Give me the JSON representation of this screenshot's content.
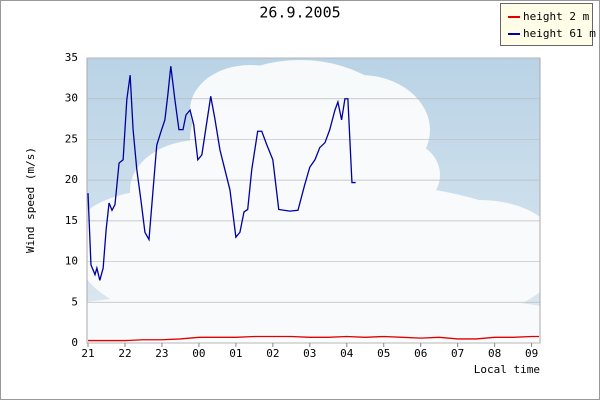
{
  "chart_data": {
    "type": "line",
    "title": "26.9.2005",
    "y_label": "Wind speed (m/s)",
    "x_label": "Local time",
    "xlim": [
      0,
      12.2
    ],
    "ylim": [
      0,
      35
    ],
    "xticks": [
      {
        "value": 0,
        "label": "21"
      },
      {
        "value": 1,
        "label": "22"
      },
      {
        "value": 2,
        "label": "23"
      },
      {
        "value": 3,
        "label": "00"
      },
      {
        "value": 4,
        "label": "01"
      },
      {
        "value": 5,
        "label": "02"
      },
      {
        "value": 6,
        "label": "03"
      },
      {
        "value": 7,
        "label": "04"
      },
      {
        "value": 8,
        "label": "05"
      },
      {
        "value": 9,
        "label": "06"
      },
      {
        "value": 10,
        "label": "07"
      },
      {
        "value": 11,
        "label": "08"
      },
      {
        "value": 12,
        "label": "09"
      }
    ],
    "yticks": [
      0,
      5,
      10,
      15,
      20,
      25,
      30,
      35
    ],
    "grid": true,
    "legend": "upper right",
    "series": [
      {
        "name": "height 2 m",
        "color": "#e00000",
        "x": [
          0,
          0.5,
          1,
          1.5,
          2,
          2.5,
          3,
          3.5,
          4,
          4.5,
          5,
          5.5,
          6,
          6.5,
          7,
          7.5,
          8,
          8.5,
          9,
          9.5,
          10,
          10.5,
          11,
          11.5,
          12,
          12.2
        ],
        "values": [
          0.3,
          0.3,
          0.3,
          0.4,
          0.4,
          0.5,
          0.7,
          0.7,
          0.7,
          0.8,
          0.8,
          0.8,
          0.7,
          0.7,
          0.8,
          0.7,
          0.8,
          0.7,
          0.6,
          0.7,
          0.5,
          0.5,
          0.7,
          0.7,
          0.8,
          0.8
        ]
      },
      {
        "name": "height 61 m",
        "color": "#0000a0",
        "x": [
          0.0,
          0.08,
          0.19,
          0.24,
          0.32,
          0.41,
          0.49,
          0.57,
          0.65,
          0.73,
          0.84,
          0.95,
          1.05,
          1.14,
          1.22,
          1.32,
          1.43,
          1.54,
          1.65,
          1.76,
          1.86,
          1.97,
          2.08,
          2.16,
          2.24,
          2.35,
          2.46,
          2.57,
          2.65,
          2.76,
          2.86,
          2.97,
          3.08,
          3.19,
          3.32,
          3.43,
          3.57,
          3.84,
          4.0,
          4.11,
          4.22,
          4.32,
          4.43,
          4.59,
          4.7,
          4.84,
          5.0,
          5.16,
          5.46,
          5.68,
          5.86,
          6.0,
          6.14,
          6.27,
          6.41,
          6.54,
          6.68,
          6.76,
          6.86,
          6.95,
          7.03,
          7.14,
          7.24
        ],
        "values": [
          18.4,
          9.6,
          8.4,
          9.2,
          7.7,
          9.2,
          13.9,
          17.2,
          16.3,
          17,
          22.1,
          22.5,
          29.9,
          32.9,
          26.2,
          21.3,
          17.6,
          13.6,
          12.7,
          18.8,
          24.3,
          25.9,
          27.4,
          30.5,
          34,
          29.9,
          26.2,
          26.2,
          28,
          28.6,
          26.8,
          22.5,
          23.1,
          26.4,
          30.3,
          27.6,
          23.7,
          18.8,
          13,
          13.6,
          16.1,
          16.4,
          21.3,
          26,
          26,
          24.3,
          22.5,
          16.4,
          16.2,
          16.3,
          19.4,
          21.6,
          22.5,
          24,
          24.6,
          26.2,
          28.6,
          29.6,
          27.4,
          30,
          30,
          19.7,
          19.7
        ]
      }
    ]
  }
}
